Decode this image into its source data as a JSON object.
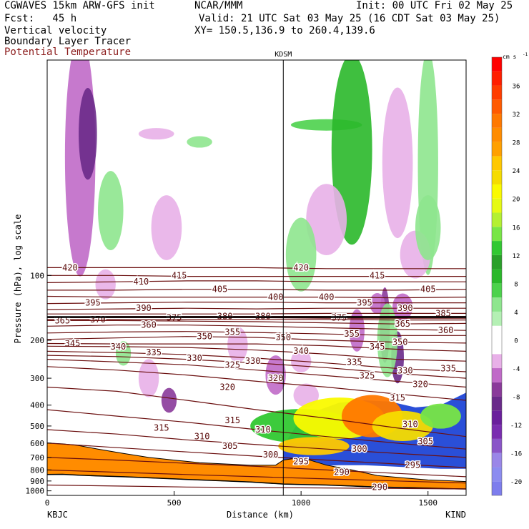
{
  "header": {
    "model_line": "CGWAVES 15km ARW-GFS init",
    "forecast_line": "Fcst:   45 h",
    "field_1": "Vertical velocity",
    "field_2": "Boundary Layer Tracer",
    "field_3": "Potential Temperature",
    "center": "NCAR/MMM",
    "init": "Init: 00 UTC Fri 02 May 25",
    "valid": "Valid: 21 UTC Sat 03 May 25 (16 CDT Sat 03 May 25)",
    "xy": "XY= 150.5,136.9 to 260.4,139.6"
  },
  "colors": {
    "theta_contour": "#6b0f0f",
    "terrain": "#ff8c00",
    "field_3_text": "#8b1a1a"
  },
  "chart_data": {
    "type": "cross-section",
    "title": "KDSM",
    "xlabel": "Distance (km)",
    "ylabel": "Pressure (hPa), log scale",
    "xlim": [
      0,
      1650
    ],
    "ylim": [
      1050,
      10
    ],
    "y_scale": "log",
    "x_ticks": [
      0,
      500,
      1000,
      1500
    ],
    "y_ticks": [
      100,
      200,
      300,
      400,
      500,
      600,
      700,
      800,
      900,
      1000
    ],
    "endpoints": {
      "left": "KBJC",
      "right": "KIND"
    },
    "marker": {
      "label": "KDSM",
      "x": 930
    },
    "colorbar": {
      "unit": "cm s",
      "unit_exp": "-1",
      "tick_labels": [
        36,
        32,
        28,
        24,
        20,
        16,
        12,
        8,
        4,
        0,
        -4,
        -8,
        -12,
        -16,
        -20
      ],
      "bins": [
        {
          "from": -22,
          "to": -20,
          "color": "#7d7ded"
        },
        {
          "from": -20,
          "to": -18,
          "color": "#8c8cf0"
        },
        {
          "from": -18,
          "to": -16,
          "color": "#9a86e8"
        },
        {
          "from": -16,
          "to": -14,
          "color": "#8a55c8"
        },
        {
          "from": -14,
          "to": -12,
          "color": "#7a2db0"
        },
        {
          "from": -12,
          "to": -10,
          "color": "#6a1f9c"
        },
        {
          "from": -10,
          "to": -8,
          "color": "#6a2a8a"
        },
        {
          "from": -8,
          "to": -6,
          "color": "#8a3a9a"
        },
        {
          "from": -6,
          "to": -4,
          "color": "#c06ac8"
        },
        {
          "from": -4,
          "to": -2,
          "color": "#e8b0e8"
        },
        {
          "from": -2,
          "to": 2,
          "color": "#ffffff"
        },
        {
          "from": 2,
          "to": 4,
          "color": "#b4f0b4"
        },
        {
          "from": 4,
          "to": 6,
          "color": "#8ee68e"
        },
        {
          "from": 6,
          "to": 8,
          "color": "#4cd24c"
        },
        {
          "from": 8,
          "to": 10,
          "color": "#2ab82a"
        },
        {
          "from": 10,
          "to": 12,
          "color": "#2aa02a"
        },
        {
          "from": 12,
          "to": 14,
          "color": "#32c832"
        },
        {
          "from": 14,
          "to": 16,
          "color": "#78e646"
        },
        {
          "from": 16,
          "to": 18,
          "color": "#b4f032"
        },
        {
          "from": 18,
          "to": 20,
          "color": "#e6fa14"
        },
        {
          "from": 20,
          "to": 22,
          "color": "#fafa00"
        },
        {
          "from": 22,
          "to": 24,
          "color": "#f5dc00"
        },
        {
          "from": 24,
          "to": 26,
          "color": "#ffc800"
        },
        {
          "from": 26,
          "to": 28,
          "color": "#ffa000"
        },
        {
          "from": 28,
          "to": 30,
          "color": "#ff8c00"
        },
        {
          "from": 30,
          "to": 32,
          "color": "#ff7800"
        },
        {
          "from": 32,
          "to": 34,
          "color": "#ff5a00"
        },
        {
          "from": 34,
          "to": 36,
          "color": "#ff3c00"
        },
        {
          "from": 36,
          "to": 38,
          "color": "#ff1e00"
        },
        {
          "from": 38,
          "to": 40,
          "color": "#ff0000"
        }
      ]
    },
    "theta_contours": [
      {
        "theta": 420,
        "p": [
          92,
          92,
          92,
          92,
          93,
          93,
          93
        ],
        "labels": [
          [
            90,
            92
          ],
          [
            1000,
            92
          ]
        ]
      },
      {
        "theta": 415,
        "p": [
          100,
          100,
          101,
          101,
          101,
          101,
          101
        ],
        "labels": [
          [
            520,
            100
          ],
          [
            1300,
            100
          ]
        ]
      },
      {
        "theta": 410,
        "p": [
          108,
          107,
          106,
          106,
          107,
          107,
          107
        ],
        "labels": [
          [
            370,
            107
          ]
        ]
      },
      {
        "theta": 405,
        "p": [
          117,
          117,
          116,
          116,
          117,
          117,
          116
        ],
        "labels": [
          [
            680,
            116
          ],
          [
            1500,
            116
          ]
        ]
      },
      {
        "theta": 400,
        "p": [
          125,
          126,
          126,
          126,
          126,
          127,
          126
        ],
        "labels": [
          [
            900,
            126
          ],
          [
            1100,
            126
          ]
        ]
      },
      {
        "theta": 395,
        "p": [
          135,
          134,
          133,
          133,
          134,
          134,
          134
        ],
        "labels": [
          [
            180,
            134
          ],
          [
            1250,
            134
          ]
        ]
      },
      {
        "theta": 390,
        "p": [
          144,
          143,
          142,
          143,
          142,
          142,
          142
        ],
        "labels": [
          [
            380,
            142
          ],
          [
            1410,
            142
          ]
        ]
      },
      {
        "theta": 385,
        "p": [
          151,
          151,
          151,
          151,
          150,
          150,
          150
        ],
        "labels": [
          [
            1560,
            150
          ]
        ]
      },
      {
        "theta": 380,
        "p": [
          156,
          155,
          155,
          155,
          155,
          155,
          155
        ],
        "labels": [
          [
            700,
            155
          ],
          [
            850,
            155
          ]
        ]
      },
      {
        "theta": 375,
        "p": [
          157,
          157,
          157,
          157,
          158,
          158,
          158
        ],
        "labels": [
          [
            500,
            157
          ],
          [
            1150,
            157
          ]
        ]
      },
      {
        "theta": 370,
        "p": [
          160,
          160,
          160,
          160,
          160,
          161,
          161
        ],
        "labels": [
          [
            200,
            160
          ]
        ]
      },
      {
        "theta": 365,
        "p": [
          162,
          162,
          163,
          164,
          166,
          168,
          167
        ],
        "labels": [
          [
            60,
            162
          ],
          [
            1400,
            168
          ]
        ]
      },
      {
        "theta": 360,
        "p": [
          172,
          170,
          170,
          172,
          175,
          178,
          180
        ],
        "labels": [
          [
            400,
            170
          ],
          [
            1570,
            180
          ]
        ]
      },
      {
        "theta": 355,
        "p": [
          185,
          183,
          182,
          184,
          187,
          190,
          190
        ],
        "labels": [
          [
            730,
            183
          ],
          [
            1200,
            187
          ]
        ]
      },
      {
        "theta": 350,
        "p": [
          198,
          195,
          192,
          194,
          200,
          204,
          206
        ],
        "labels": [
          [
            620,
            192
          ],
          [
            930,
            194
          ],
          [
            1390,
            204
          ]
        ]
      },
      {
        "theta": 345,
        "p": [
          207,
          208,
          208,
          208,
          212,
          220,
          225
        ],
        "labels": [
          [
            100,
            207
          ],
          [
            1300,
            214
          ]
        ]
      },
      {
        "theta": 340,
        "p": [
          213,
          214,
          216,
          222,
          232,
          245,
          250
        ],
        "labels": [
          [
            280,
            214
          ],
          [
            1000,
            224
          ]
        ]
      },
      {
        "theta": 335,
        "p": [
          225,
          228,
          233,
          242,
          255,
          270,
          280
        ],
        "labels": [
          [
            420,
            228
          ],
          [
            1210,
            252
          ],
          [
            1580,
            270
          ]
        ]
      },
      {
        "theta": 330,
        "p": [
          235,
          238,
          245,
          255,
          268,
          285,
          300
        ],
        "labels": [
          [
            580,
            242
          ],
          [
            810,
            250
          ],
          [
            1410,
            277
          ]
        ]
      },
      {
        "theta": 325,
        "p": [
          245,
          252,
          260,
          275,
          292,
          310,
          330
        ],
        "labels": [
          [
            730,
            260
          ],
          [
            1260,
            292
          ]
        ]
      },
      {
        "theta": 320,
        "p": [
          265,
          275,
          290,
          310,
          330,
          355,
          380
        ],
        "labels": [
          [
            710,
            330
          ],
          [
            900,
            300
          ],
          [
            1470,
            320
          ]
        ]
      },
      {
        "theta": 315,
        "p": [
          330,
          345,
          380,
          420,
          460,
          510,
          560
        ],
        "labels": [
          [
            450,
            510
          ],
          [
            730,
            470
          ],
          [
            1380,
            370
          ]
        ]
      },
      {
        "theta": 310,
        "p": [
          420,
          450,
          480,
          520,
          560,
          600,
          640
        ],
        "labels": [
          [
            610,
            560
          ],
          [
            850,
            520
          ],
          [
            1430,
            490
          ]
        ]
      },
      {
        "theta": 305,
        "p": [
          520,
          545,
          580,
          610,
          640,
          670,
          700
        ],
        "labels": [
          [
            720,
            620
          ],
          [
            1490,
            590
          ]
        ]
      },
      {
        "theta": 300,
        "p": [
          600,
          630,
          660,
          690,
          720,
          750,
          780
        ],
        "labels": [
          [
            880,
            680
          ],
          [
            1230,
            640
          ]
        ]
      },
      {
        "theta": 295,
        "p": [
          700,
          720,
          745,
          770,
          800,
          830,
          860
        ],
        "labels": [
          [
            1000,
            730
          ],
          [
            1440,
            760
          ]
        ]
      },
      {
        "theta": 290,
        "p": [
          800,
          820,
          840,
          860,
          880,
          900,
          920
        ],
        "labels": [
          [
            1160,
            820
          ]
        ]
      },
      {
        "theta": 290,
        "p": [
          940,
          950,
          960,
          965,
          970,
          975,
          980
        ],
        "labels": [
          [
            1310,
            960
          ]
        ]
      }
    ],
    "terrain_surface": {
      "x": [
        0,
        60,
        120,
        200,
        300,
        400,
        500,
        600,
        700,
        800,
        900,
        930,
        1000,
        1100,
        1200,
        1300,
        1400,
        1500,
        1600,
        1650
      ],
      "p": [
        840,
        838,
        845,
        852,
        860,
        870,
        880,
        890,
        900,
        910,
        925,
        930,
        935,
        940,
        950,
        960,
        965,
        972,
        978,
        980
      ]
    },
    "terrain_top": {
      "x": [
        0,
        60,
        120,
        200,
        300,
        400,
        500,
        600,
        700,
        800,
        900,
        930,
        1000,
        1100,
        1200,
        1300,
        1400,
        1500,
        1600,
        1650
      ],
      "p": [
        600,
        605,
        615,
        640,
        670,
        700,
        720,
        740,
        750,
        760,
        760,
        720,
        700,
        760,
        800,
        850,
        870,
        890,
        900,
        905
      ]
    },
    "plume_region": {
      "x": [
        930,
        980,
        1050,
        1150,
        1250,
        1350,
        1450,
        1550,
        1650,
        1650,
        1550,
        1450,
        1350,
        1250,
        1150,
        1050,
        980,
        930
      ],
      "p": [
        620,
        500,
        430,
        390,
        380,
        385,
        410,
        400,
        350,
        790,
        790,
        780,
        770,
        760,
        760,
        770,
        760,
        720
      ]
    }
  }
}
